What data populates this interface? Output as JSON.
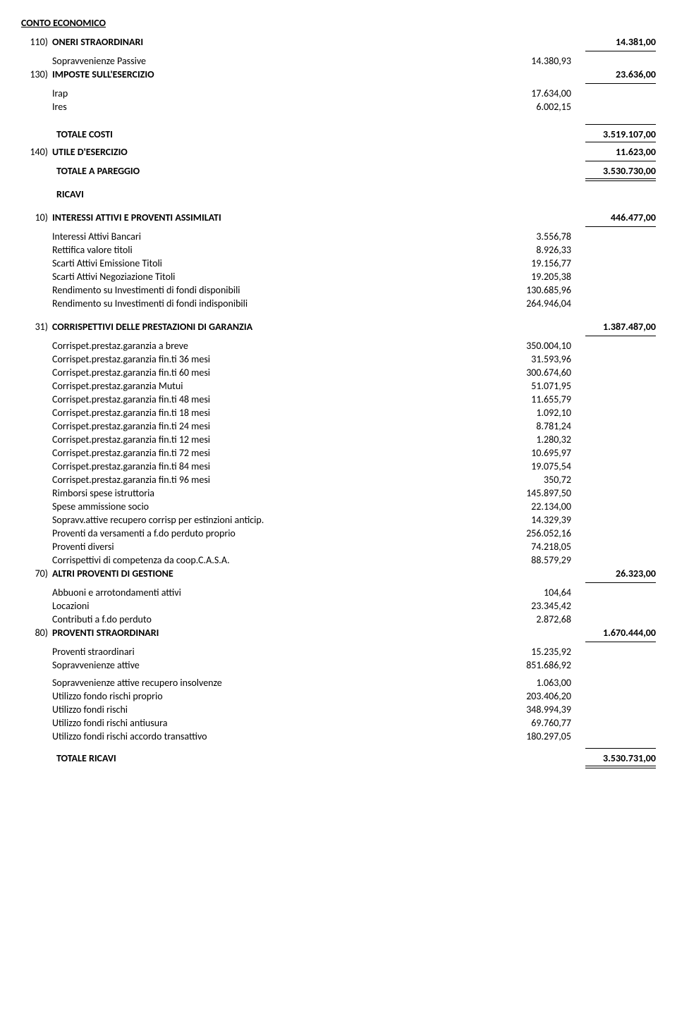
{
  "title": "CONTO ECONOMICO",
  "s110": {
    "num": "110)",
    "label": "ONERI STRAORDINARI",
    "total": "14.381,00",
    "items": [
      {
        "label": "Sopravvenienze Passive",
        "value": "14.380,93"
      }
    ]
  },
  "s130": {
    "num": "130)",
    "label": "IMPOSTE SULL'ESERCIZIO",
    "total": "23.636,00",
    "items": [
      {
        "label": "Irap",
        "value": "17.634,00"
      },
      {
        "label": "Ires",
        "value": "6.002,15"
      }
    ]
  },
  "totCosti": {
    "label": "TOTALE COSTI",
    "value": "3.519.107,00"
  },
  "s140": {
    "num": "140)",
    "label": "UTILE D'ESERCIZIO",
    "total": "11.623,00"
  },
  "totPareggio": {
    "label": "TOTALE A PAREGGIO",
    "value": "3.530.730,00"
  },
  "ricavi": {
    "label": "RICAVI"
  },
  "s10": {
    "num": "10)",
    "label": "INTERESSI ATTIVI E PROVENTI ASSIMILATI",
    "total": "446.477,00",
    "items": [
      {
        "label": "Interessi Attivi Bancari",
        "value": "3.556,78"
      },
      {
        "label": "Rettifica valore titoli",
        "value": "8.926,33"
      },
      {
        "label": "Scarti Attivi Emissione Titoli",
        "value": "19.156,77"
      },
      {
        "label": "Scarti Attivi Negoziazione Titoli",
        "value": "19.205,38"
      },
      {
        "label": "Rendimento su Investimenti di fondi disponibili",
        "value": "130.685,96"
      },
      {
        "label": "Rendimento su Investimenti di fondi indisponibili",
        "value": "264.946,04"
      }
    ]
  },
  "s31": {
    "num": "31)",
    "label": "CORRISPETTIVI DELLE PRESTAZIONI DI GARANZIA",
    "total": "1.387.487,00",
    "items": [
      {
        "label": "Corrispet.prestaz.garanzia a breve",
        "value": "350.004,10"
      },
      {
        "label": "Corrispet.prestaz.garanzia fin.ti 36 mesi",
        "value": "31.593,96"
      },
      {
        "label": "Corrispet.prestaz.garanzia fin.ti 60 mesi",
        "value": "300.674,60"
      },
      {
        "label": "Corrispet.prestaz.garanzia Mutui",
        "value": "51.071,95"
      },
      {
        "label": "Corrispet.prestaz.garanzia fin.ti 48 mesi",
        "value": "11.655,79"
      },
      {
        "label": "Corrispet.prestaz.garanzia fin.ti 18 mesi",
        "value": "1.092,10"
      },
      {
        "label": "Corrispet.prestaz.garanzia fin.ti 24 mesi",
        "value": "8.781,24"
      },
      {
        "label": "Corrispet.prestaz.garanzia fin.ti 12 mesi",
        "value": "1.280,32"
      },
      {
        "label": "Corrispet.prestaz.garanzia fin.ti 72 mesi",
        "value": "10.695,97"
      },
      {
        "label": "Corrispet.prestaz.garanzia fin.ti 84 mesi",
        "value": "19.075,54"
      },
      {
        "label": "Corrispet.prestaz.garanzia fin.ti 96 mesi",
        "value": "350,72"
      },
      {
        "label": "Rimborsi spese istruttoria",
        "value": "145.897,50"
      },
      {
        "label": "Spese ammissione socio",
        "value": "22.134,00"
      },
      {
        "label": "Sopravv.attive recupero corrisp per estinzioni anticip.",
        "value": "14.329,39"
      },
      {
        "label": "Proventi da versamenti a f.do perduto proprio",
        "value": "256.052,16"
      },
      {
        "label": "Proventi diversi",
        "value": "74.218,05"
      },
      {
        "label": "Corrispettivi di competenza da coop.C.A.S.A.",
        "value": "88.579,29"
      }
    ]
  },
  "s70": {
    "num": "70)",
    "label": "ALTRI PROVENTI DI GESTIONE",
    "total": "26.323,00",
    "items": [
      {
        "label": "Abbuoni e arrotondamenti attivi",
        "value": "104,64"
      },
      {
        "label": "Locazioni",
        "value": "23.345,42"
      },
      {
        "label": "Contributi a f.do perduto",
        "value": "2.872,68"
      }
    ]
  },
  "s80": {
    "num": "80)",
    "label": "PROVENTI STRAORDINARI",
    "total": "1.670.444,00",
    "groupA": [
      {
        "label": "Proventi straordinari",
        "value": "15.235,92"
      },
      {
        "label": "Sopravvenienze attive",
        "value": "851.686,92"
      }
    ],
    "groupB": [
      {
        "label": "Sopravvenienze attive recupero insolvenze",
        "value": "1.063,00"
      },
      {
        "label": "Utilizzo fondo rischi proprio",
        "value": "203.406,20"
      },
      {
        "label": "Utilizzo fondi rischi",
        "value": "348.994,39"
      },
      {
        "label": "Utilizzo fondi rischi antiusura",
        "value": "69.760,77"
      },
      {
        "label": "Utilizzo fondi rischi accordo transattivo",
        "value": "180.297,05"
      }
    ]
  },
  "totRicavi": {
    "label": "TOTALE RICAVI",
    "value": "3.530.731,00"
  }
}
